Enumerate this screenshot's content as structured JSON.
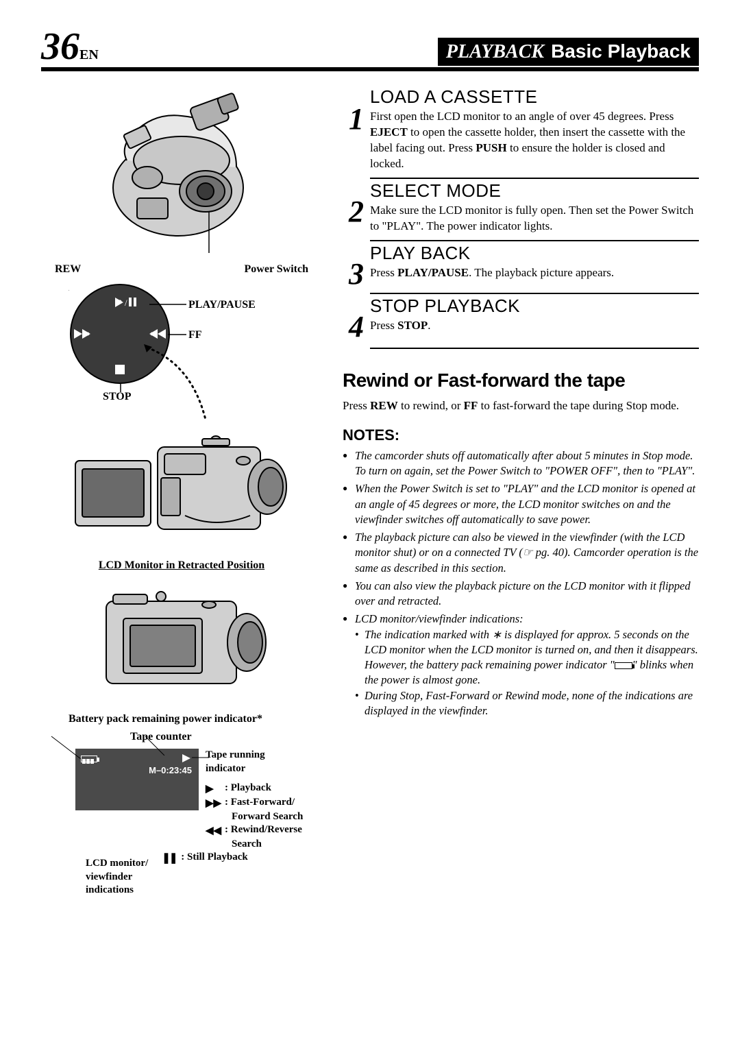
{
  "page": {
    "number": "36",
    "lang": "EN"
  },
  "header": {
    "section": "PLAYBACK",
    "subsection": "Basic Playback"
  },
  "left": {
    "rew_label": "REW",
    "power_switch_label": "Power Switch",
    "playpause_label": "PLAY/PAUSE",
    "ff_label": "FF",
    "stop_label": "STOP",
    "lcd_retracted_caption": "LCD Monitor in Retracted Position",
    "battery_caption": "Battery pack remaining power indicator*",
    "tape_counter_label": "Tape counter",
    "lcd_counter_value": "M–0:23:45",
    "tape_running_label_l1": "Tape running",
    "tape_running_label_l2": "indicator",
    "indicators": {
      "playback": ": Playback",
      "ff_l1": ": Fast-Forward/",
      "ff_l2": "Forward Search",
      "rew_l1": ": Rewind/Reverse",
      "rew_l2": "Search",
      "still": ": Still Playback"
    },
    "lcd_monitor_label_l1": "LCD monitor/",
    "lcd_monitor_label_l2": "viewfinder",
    "lcd_monitor_label_l3": "indications"
  },
  "steps": [
    {
      "num": "1",
      "title": "LOAD A CASSETTE",
      "text_parts": [
        "First open the LCD monitor to an angle of over 45 degrees. Press ",
        "EJECT",
        " to open the cassette holder, then insert the cassette with the label facing out. Press ",
        "PUSH",
        " to ensure the holder is closed and locked."
      ]
    },
    {
      "num": "2",
      "title": "SELECT MODE",
      "text_parts": [
        "Make sure the LCD monitor is fully open. Then set the Power Switch to \"PLAY\". The power indicator lights."
      ]
    },
    {
      "num": "3",
      "title": "PLAY BACK",
      "text_parts": [
        "Press ",
        "PLAY/PAUSE",
        ". The playback picture appears."
      ]
    },
    {
      "num": "4",
      "title": "STOP PLAYBACK",
      "text_parts": [
        "Press ",
        "STOP",
        "."
      ]
    }
  ],
  "rewind": {
    "title": "Rewind or Fast-forward the tape",
    "text_parts": [
      "Press ",
      "REW",
      " to rewind, or ",
      "FF",
      " to fast-forward the tape during Stop mode."
    ]
  },
  "notes": {
    "title": "NOTES:",
    "items": [
      "The camcorder shuts off automatically after about 5 minutes in Stop mode. To turn on again, set the Power Switch to \"POWER OFF\", then to \"PLAY\".",
      "When the Power Switch is set to \"PLAY\" and the LCD monitor is opened at an angle of 45 degrees or more, the LCD monitor switches on and the viewfinder switches off automatically to save power.",
      "The playback picture can also be viewed in the viewfinder (with the LCD monitor shut) or on a connected TV (☞ pg. 40). Camcorder operation is the same as described in this section.",
      "You can also view the playback picture on the LCD monitor with it flipped over and retracted.",
      "LCD monitor/viewfinder indications:"
    ],
    "subitems": [
      "The indication marked with ∗ is displayed for approx. 5 seconds on the LCD monitor when the LCD monitor is turned on, and then it disappears. However, the battery pack remaining power indicator \"[BATT]\" blinks when the power is almost gone.",
      "During Stop, Fast-Forward or Rewind mode, none of the indications are displayed in the viewfinder."
    ]
  },
  "colors": {
    "black": "#000000",
    "gray_dark": "#4a4a4a",
    "gray_med": "#9e9e9e",
    "gray_light": "#d0d0d0",
    "white": "#ffffff"
  }
}
